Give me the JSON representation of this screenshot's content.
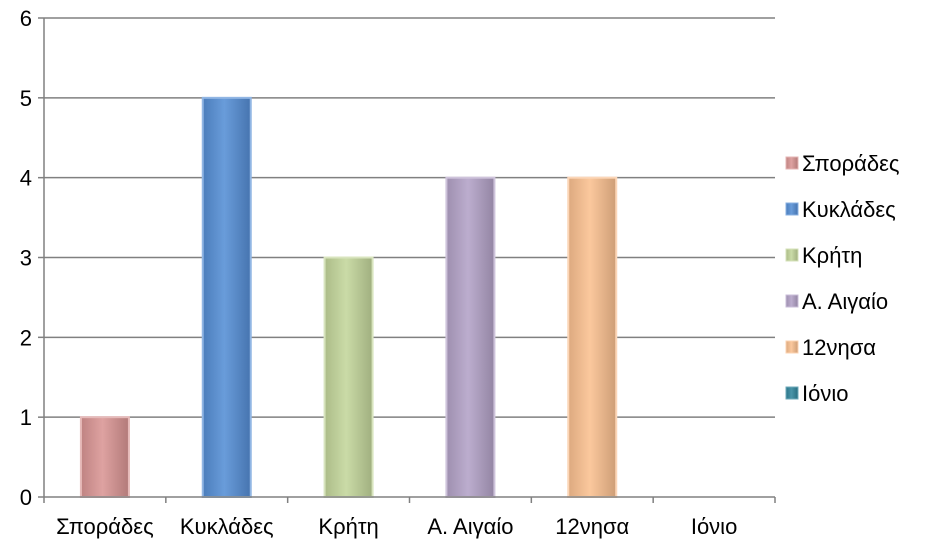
{
  "chart_data": {
    "type": "bar",
    "title": "",
    "xlabel": "",
    "ylabel": "",
    "categories": [
      "Σποράδες",
      "Κυκλάδες",
      "Κρήτη",
      "Α. Αιγαίο",
      "12νησα",
      "Ιόνιο"
    ],
    "series": [
      {
        "name": "Σποράδες",
        "values": [
          1,
          null,
          null,
          null,
          null,
          null
        ],
        "color": "#d99594"
      },
      {
        "name": "Κυκλάδες",
        "values": [
          null,
          5,
          null,
          null,
          null,
          null
        ],
        "color": "#558ed5"
      },
      {
        "name": "Κρήτη",
        "values": [
          null,
          null,
          3,
          null,
          null,
          null
        ],
        "color": "#c3d69b"
      },
      {
        "name": "Α. Αιγαίο",
        "values": [
          null,
          null,
          null,
          4,
          null,
          null
        ],
        "color": "#b3a2c7"
      },
      {
        "name": "12νησα",
        "values": [
          null,
          null,
          null,
          null,
          4,
          null
        ],
        "color": "#fac090"
      },
      {
        "name": "Ιόνιο",
        "values": [
          null,
          null,
          null,
          null,
          null,
          0
        ],
        "color": "#31859c"
      }
    ],
    "ylim": [
      0,
      6
    ],
    "yticks": [
      0,
      1,
      2,
      3,
      4,
      5,
      6
    ],
    "grid": true,
    "legend": "right"
  }
}
